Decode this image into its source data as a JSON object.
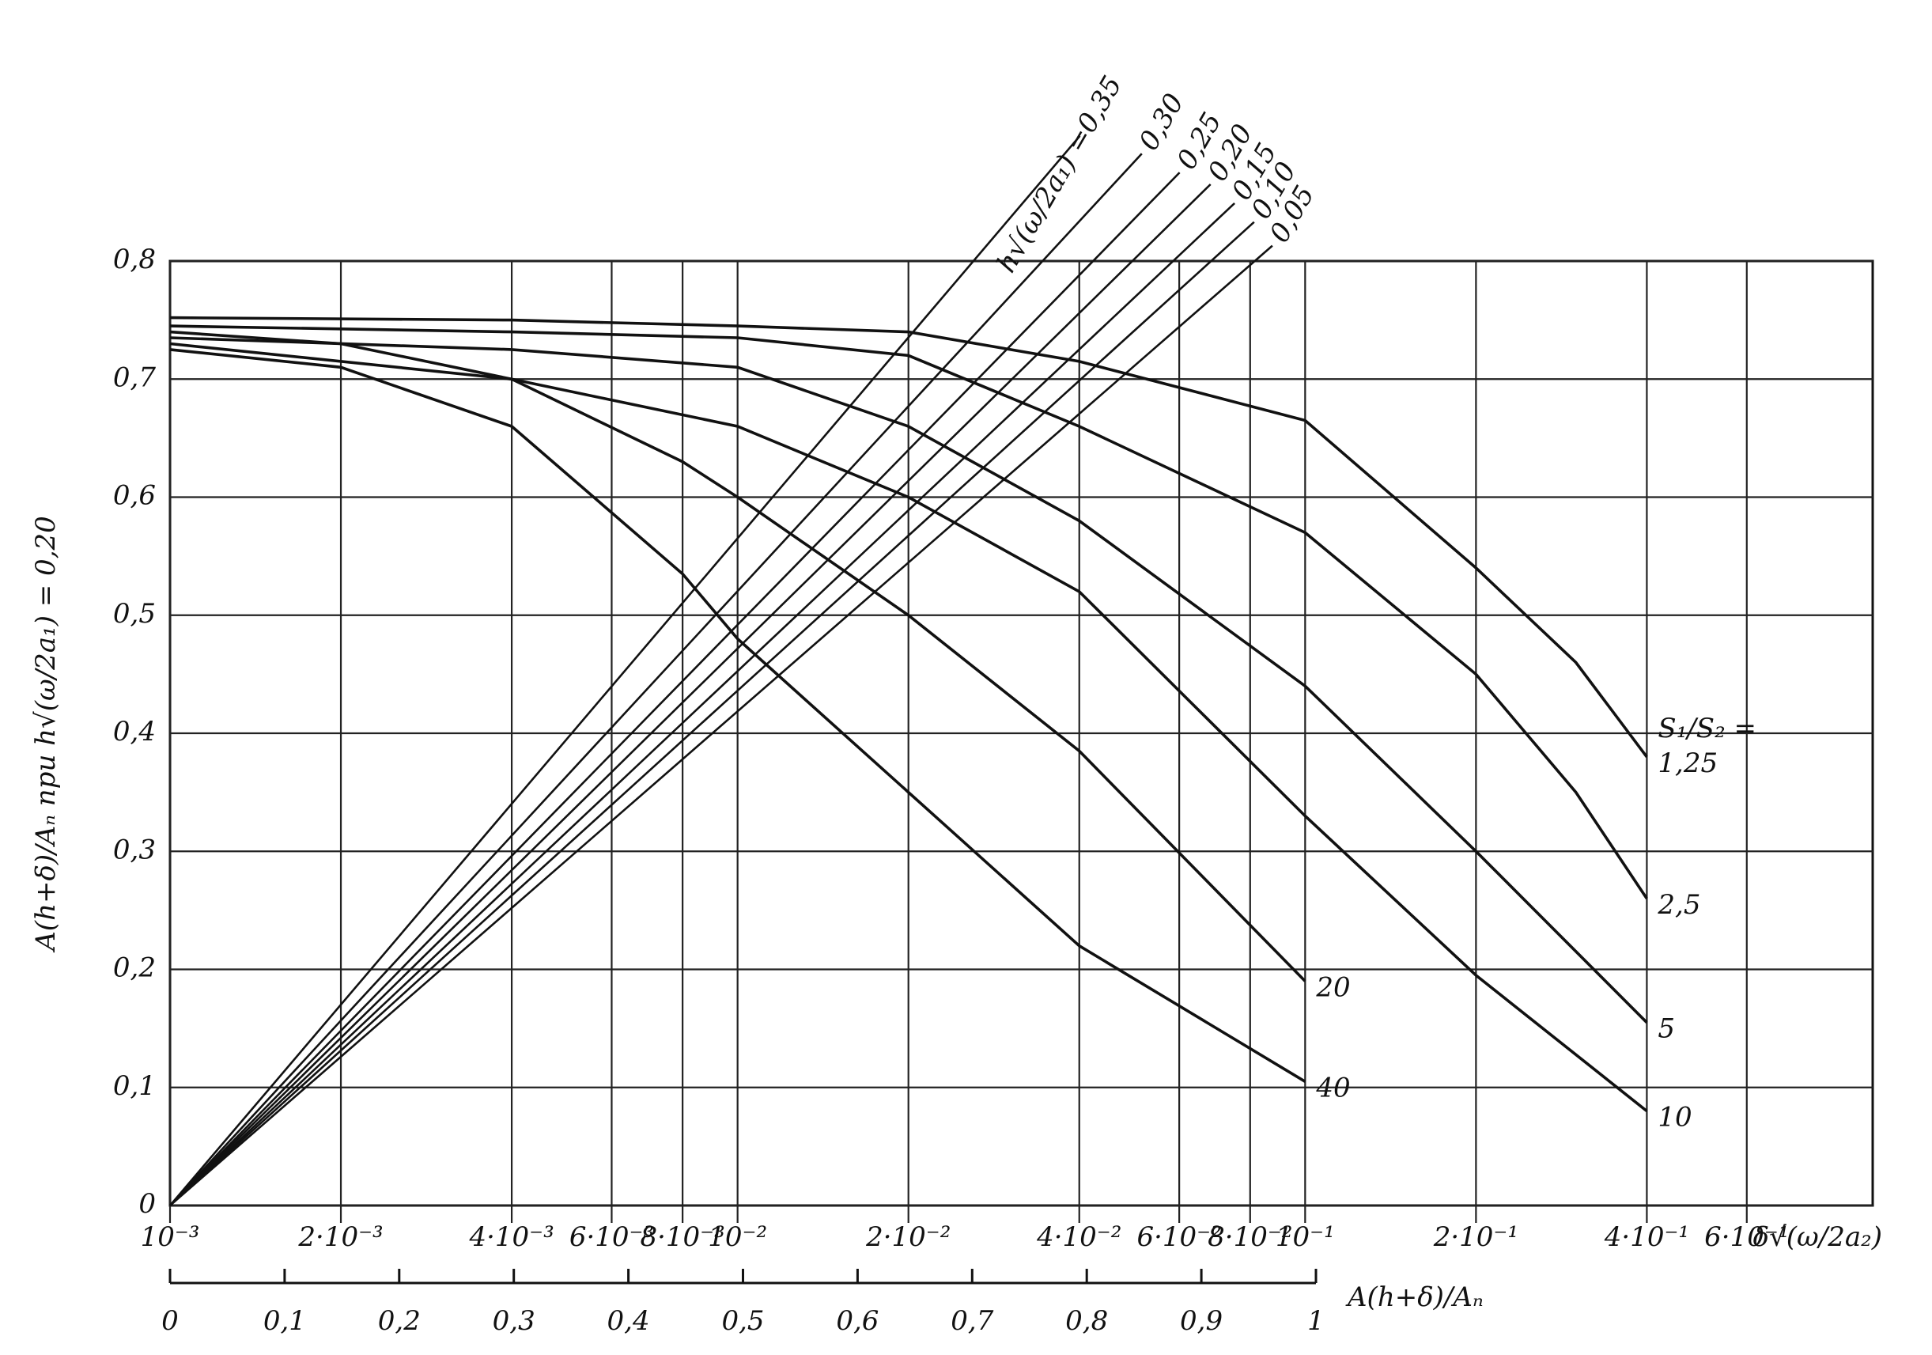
{
  "chart_data": {
    "type": "line",
    "y_label": "A(h+δ)/Aₙ при h√(ω/2a₁) = 0,20",
    "x_label": "δ√(ω/2a₂)",
    "x2_label": "A(h+δ)/Aₙ",
    "series_annotation": "S₁/S₂ =",
    "rays_annotation": "h√(ω/2a₁) =",
    "log_x": true,
    "grid": true,
    "color": "#111111",
    "xlim": [
      0.001,
      1
    ],
    "x2lim": [
      0,
      1
    ],
    "ylim": [
      0,
      0.8
    ],
    "yticks": [
      0,
      {
        "value": 0.1,
        "label": "0,1"
      },
      {
        "value": 0.2,
        "label": "0,2"
      },
      {
        "value": 0.3,
        "label": "0,3"
      },
      {
        "value": 0.4,
        "label": "0,4"
      },
      {
        "value": 0.5,
        "label": "0,5"
      },
      {
        "value": 0.6,
        "label": "0,6"
      },
      {
        "value": 0.7,
        "label": "0,7"
      },
      {
        "value": 0.8,
        "label": "0,8"
      }
    ],
    "xticks": [
      {
        "value": 0.001,
        "label": "10⁻³"
      },
      {
        "value": 0.002,
        "label": "2·10⁻³"
      },
      {
        "value": 0.004,
        "label": "4·10⁻³"
      },
      {
        "value": 0.006,
        "label": "6·10⁻³"
      },
      {
        "value": 0.008,
        "label": "8·10⁻³"
      },
      {
        "value": 0.01,
        "label": "10⁻²"
      },
      {
        "value": 0.02,
        "label": "2·10⁻²"
      },
      {
        "value": 0.04,
        "label": "4·10⁻²"
      },
      {
        "value": 0.06,
        "label": "6·10⁻²"
      },
      {
        "value": 0.08,
        "label": "8·10⁻²"
      },
      {
        "value": 0.1,
        "label": "10⁻¹"
      },
      {
        "value": 0.2,
        "label": "2·10⁻¹"
      },
      {
        "value": 0.4,
        "label": "4·10⁻¹"
      },
      {
        "value": 0.6,
        "label": "6·10⁻¹"
      }
    ],
    "x2ticks": [
      0,
      {
        "value": 0.1,
        "label": "0,1"
      },
      {
        "value": 0.2,
        "label": "0,2"
      },
      {
        "value": 0.3,
        "label": "0,3"
      },
      {
        "value": 0.4,
        "label": "0,4"
      },
      {
        "value": 0.5,
        "label": "0,5"
      },
      {
        "value": 0.6,
        "label": "0,6"
      },
      {
        "value": 0.7,
        "label": "0,7"
      },
      {
        "value": 0.8,
        "label": "0,8"
      },
      {
        "value": 0.9,
        "label": "0,9"
      },
      1
    ],
    "series": [
      {
        "name": "1,25",
        "x": [
          0.001,
          0.004,
          0.01,
          0.02,
          0.04,
          0.1,
          0.2,
          0.3,
          0.4
        ],
        "values": [
          0.752,
          0.75,
          0.745,
          0.74,
          0.715,
          0.665,
          0.54,
          0.46,
          0.38
        ]
      },
      {
        "name": "2,5",
        "x": [
          0.001,
          0.004,
          0.01,
          0.02,
          0.04,
          0.1,
          0.2,
          0.3,
          0.4
        ],
        "values": [
          0.745,
          0.74,
          0.735,
          0.72,
          0.66,
          0.57,
          0.45,
          0.35,
          0.26
        ]
      },
      {
        "name": "5",
        "x": [
          0.001,
          0.004,
          0.01,
          0.02,
          0.04,
          0.1,
          0.2,
          0.4
        ],
        "values": [
          0.735,
          0.725,
          0.71,
          0.66,
          0.58,
          0.44,
          0.3,
          0.155
        ]
      },
      {
        "name": "10",
        "x": [
          0.001,
          0.004,
          0.01,
          0.02,
          0.04,
          0.1,
          0.2,
          0.4
        ],
        "values": [
          0.73,
          0.7,
          0.66,
          0.6,
          0.52,
          0.33,
          0.195,
          0.08
        ]
      },
      {
        "name": "20",
        "x": [
          0.001,
          0.002,
          0.004,
          0.008,
          0.01,
          0.02,
          0.04,
          0.1
        ],
        "values": [
          0.74,
          0.73,
          0.7,
          0.63,
          0.6,
          0.5,
          0.385,
          0.19
        ]
      },
      {
        "name": "40",
        "x": [
          0.001,
          0.002,
          0.004,
          0.008,
          0.01,
          0.02,
          0.04,
          0.1
        ],
        "values": [
          0.725,
          0.71,
          0.66,
          0.535,
          0.48,
          0.35,
          0.22,
          0.105
        ]
      },
      {
        "name": "0,35",
        "axis": "x2",
        "x": [
          0,
          0.794
        ],
        "values": [
          0,
          0.906
        ]
      },
      {
        "name": "0,30",
        "axis": "x2",
        "x": [
          0,
          0.848
        ],
        "values": [
          0,
          0.891
        ]
      },
      {
        "name": "0,25",
        "axis": "x2",
        "x": [
          0,
          0.881
        ],
        "values": [
          0,
          0.875
        ]
      },
      {
        "name": "0,20",
        "axis": "x2",
        "x": [
          0,
          0.908
        ],
        "values": [
          0,
          0.865
        ]
      },
      {
        "name": "0,15",
        "axis": "x2",
        "x": [
          0,
          0.929
        ],
        "values": [
          0,
          0.849
        ]
      },
      {
        "name": "0,10",
        "axis": "x2",
        "x": [
          0,
          0.946
        ],
        "values": [
          0,
          0.833
        ]
      },
      {
        "name": "0,05",
        "axis": "x2",
        "x": [
          0,
          0.962
        ],
        "values": [
          0,
          0.813
        ]
      }
    ]
  }
}
